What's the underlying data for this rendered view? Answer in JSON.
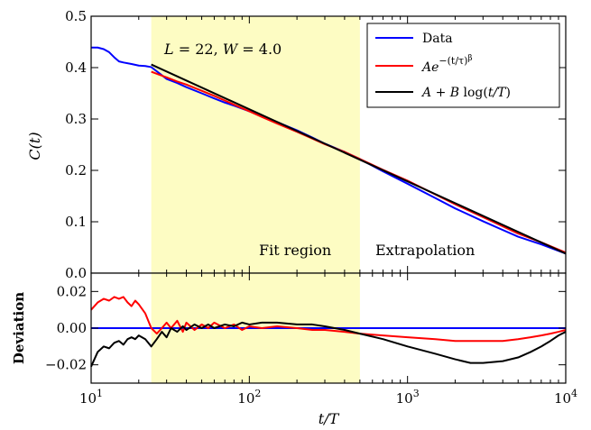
{
  "chart_data": [
    {
      "type": "line",
      "panel": "main",
      "ylabel": "C(t)",
      "xscale": "log",
      "xlim": [
        10,
        10000
      ],
      "ylim": [
        0.0,
        0.5
      ],
      "yticks": [
        "0.0",
        "0.1",
        "0.2",
        "0.3",
        "0.4",
        "0.5"
      ],
      "shaded_region": {
        "x_start": 24,
        "x_end": 500,
        "color": "#fdfcc3"
      },
      "annotations": {
        "params": {
          "L": "L",
          "eq1": " = 22, ",
          "W": "W",
          "eq2": " = 4.0"
        },
        "fit_region": "Fit region",
        "extrapolation": "Extrapolation"
      },
      "legend": {
        "position": "top-right",
        "entries": [
          {
            "key": "data",
            "color": "#0000ff",
            "parts": [
              {
                "t": "Data",
                "i": false
              }
            ]
          },
          {
            "key": "stretched",
            "color": "#ff0000",
            "parts": [
              {
                "t": "Ae",
                "i": true
              }
            ],
            "sup": "−(t/τ)",
            "sup2": "β"
          },
          {
            "key": "log",
            "color": "#000000",
            "parts": [
              {
                "t": "A",
                "i": true
              },
              {
                "t": " + ",
                "i": false
              },
              {
                "t": "B",
                "i": true
              },
              {
                "t": " log(",
                "i": false
              },
              {
                "t": "t/T",
                "i": true
              },
              {
                "t": ")",
                "i": false
              }
            ]
          }
        ]
      },
      "series": [
        {
          "name": "Data",
          "color": "#0000ff",
          "x": [
            10,
            11,
            12,
            13,
            14,
            15,
            16,
            18,
            20,
            22,
            24,
            27,
            30,
            35,
            40,
            50,
            60,
            70,
            80,
            100,
            120,
            150,
            200,
            250,
            300,
            400,
            500,
            700,
            1000,
            1500,
            2000,
            3000,
            4000,
            5000,
            7000,
            10000
          ],
          "y": [
            0.439,
            0.439,
            0.436,
            0.43,
            0.42,
            0.412,
            0.41,
            0.407,
            0.404,
            0.403,
            0.401,
            0.389,
            0.378,
            0.37,
            0.362,
            0.35,
            0.34,
            0.332,
            0.326,
            0.315,
            0.306,
            0.294,
            0.278,
            0.264,
            0.252,
            0.236,
            0.222,
            0.198,
            0.174,
            0.146,
            0.126,
            0.101,
            0.084,
            0.071,
            0.056,
            0.038
          ]
        },
        {
          "name": "Ae^{-(t/τ)^β}",
          "color": "#ff0000",
          "x": [
            24,
            27,
            30,
            35,
            40,
            50,
            60,
            70,
            80,
            100,
            120,
            150,
            200,
            250,
            300,
            400,
            500,
            700,
            1000,
            1500,
            2000,
            3000,
            4000,
            5000,
            7000,
            10000
          ],
          "y": [
            0.392,
            0.386,
            0.381,
            0.373,
            0.367,
            0.355,
            0.345,
            0.336,
            0.328,
            0.315,
            0.304,
            0.291,
            0.275,
            0.262,
            0.251,
            0.236,
            0.222,
            0.201,
            0.18,
            0.153,
            0.134,
            0.109,
            0.091,
            0.077,
            0.06,
            0.04
          ]
        },
        {
          "name": "A + B log(t/T)",
          "color": "#000000",
          "x": [
            24,
            10000
          ],
          "y": [
            0.406,
            0.038
          ]
        }
      ]
    },
    {
      "type": "line",
      "panel": "deviation",
      "xlabel": "t/T",
      "ylabel": "Deviation",
      "xscale": "log",
      "xlim": [
        10,
        10000
      ],
      "ylim": [
        -0.03,
        0.03
      ],
      "yticks": [
        "−0.02",
        "0.00",
        "0.02"
      ],
      "xticks": [
        {
          "value": 10,
          "base": "10",
          "exp": "1"
        },
        {
          "value": 100,
          "base": "10",
          "exp": "2"
        },
        {
          "value": 1000,
          "base": "10",
          "exp": "3"
        },
        {
          "value": 10000,
          "base": "10",
          "exp": "4"
        }
      ],
      "series": [
        {
          "name": "Data",
          "color": "#0000ff",
          "x": [
            10,
            10000
          ],
          "y": [
            0.0,
            0.0
          ]
        },
        {
          "name": "Ae^{-(t/τ)^β}",
          "color": "#ff0000",
          "x": [
            10,
            11,
            12,
            13,
            14,
            15,
            16,
            17,
            18,
            19,
            20,
            22,
            24,
            26,
            28,
            30,
            32,
            35,
            38,
            40,
            45,
            50,
            55,
            60,
            70,
            80,
            90,
            100,
            120,
            150,
            200,
            250,
            300,
            400,
            500,
            700,
            1000,
            1500,
            2000,
            3000,
            4000,
            5000,
            6000,
            7000,
            8000,
            9000,
            10000
          ],
          "y": [
            0.01,
            0.014,
            0.016,
            0.015,
            0.017,
            0.016,
            0.017,
            0.014,
            0.012,
            0.015,
            0.013,
            0.008,
            0.0,
            -0.003,
            0.0,
            0.003,
            0.0,
            0.004,
            -0.002,
            0.003,
            -0.001,
            0.002,
            0.0,
            0.003,
            0.0,
            0.002,
            -0.001,
            0.001,
            0.0,
            0.001,
            0.0,
            -0.001,
            -0.001,
            -0.002,
            -0.003,
            -0.004,
            -0.005,
            -0.006,
            -0.007,
            -0.007,
            -0.007,
            -0.006,
            -0.005,
            -0.004,
            -0.003,
            -0.002,
            -0.001
          ]
        },
        {
          "name": "A + B log(t/T)",
          "color": "#000000",
          "x": [
            10,
            11,
            12,
            13,
            14,
            15,
            16,
            17,
            18,
            19,
            20,
            22,
            24,
            26,
            28,
            30,
            32,
            35,
            38,
            40,
            45,
            50,
            55,
            60,
            70,
            80,
            90,
            100,
            120,
            150,
            200,
            250,
            300,
            400,
            500,
            700,
            1000,
            1500,
            2000,
            2500,
            3000,
            4000,
            5000,
            6000,
            7000,
            8000,
            9000,
            10000
          ],
          "y": [
            -0.021,
            -0.013,
            -0.01,
            -0.011,
            -0.008,
            -0.007,
            -0.009,
            -0.006,
            -0.005,
            -0.006,
            -0.004,
            -0.006,
            -0.01,
            -0.006,
            -0.002,
            -0.005,
            0.0,
            -0.002,
            0.001,
            -0.001,
            0.002,
            0.0,
            0.002,
            0.0,
            0.002,
            0.001,
            0.003,
            0.002,
            0.003,
            0.003,
            0.002,
            0.002,
            0.001,
            -0.001,
            -0.003,
            -0.006,
            -0.01,
            -0.014,
            -0.017,
            -0.019,
            -0.019,
            -0.018,
            -0.016,
            -0.013,
            -0.01,
            -0.007,
            -0.004,
            -0.002
          ]
        }
      ]
    }
  ]
}
